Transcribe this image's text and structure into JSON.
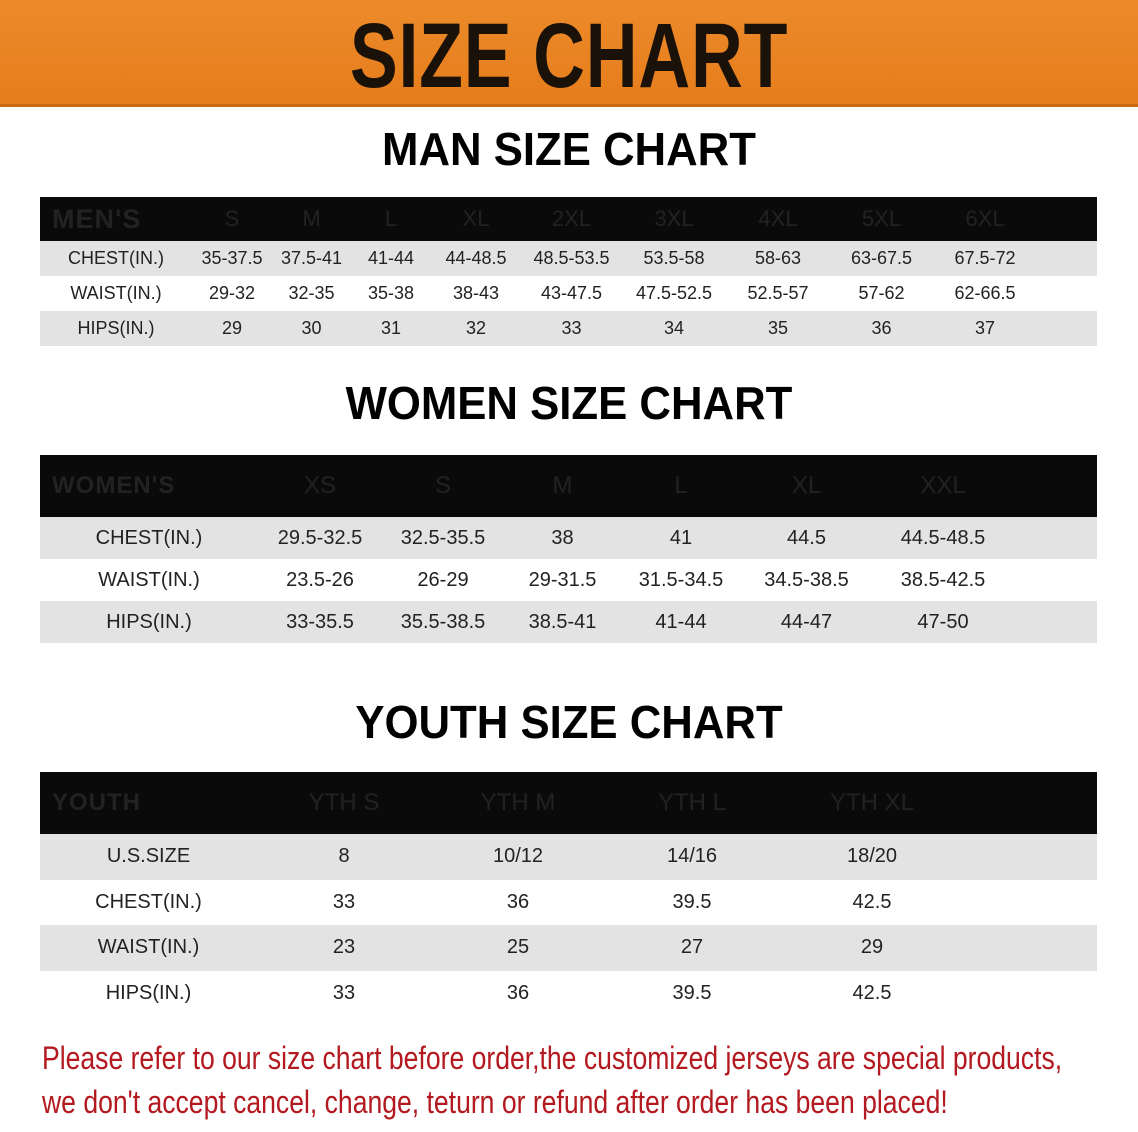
{
  "banner_title": "SIZE CHART",
  "colors": {
    "banner": "#e8821f",
    "header_row": "#0a0a0a",
    "stripe": "#e3e3e3",
    "notice": "#b3191f"
  },
  "men": {
    "title": "MAN SIZE CHART",
    "header": "MEN'S",
    "sizes": [
      "S",
      "M",
      "L",
      "XL",
      "2XL",
      "3XL",
      "4XL",
      "5XL",
      "6XL"
    ],
    "rows": [
      {
        "label": "CHEST(IN.)",
        "values": [
          "35-37.5",
          "37.5-41",
          "41-44",
          "44-48.5",
          "48.5-53.5",
          "53.5-58",
          "58-63",
          "63-67.5",
          "67.5-72"
        ]
      },
      {
        "label": "WAIST(IN.)",
        "values": [
          "29-32",
          "32-35",
          "35-38",
          "38-43",
          "43-47.5",
          "47.5-52.5",
          "52.5-57",
          "57-62",
          "62-66.5"
        ]
      },
      {
        "label": "HIPS(IN.)",
        "values": [
          "29",
          "30",
          "31",
          "32",
          "33",
          "34",
          "35",
          "36",
          "37"
        ]
      }
    ]
  },
  "women": {
    "title": "WOMEN SIZE CHART",
    "header": "WOMEN'S",
    "sizes": [
      "XS",
      "S",
      "M",
      "L",
      "XL",
      "XXL"
    ],
    "rows": [
      {
        "label": "CHEST(IN.)",
        "values": [
          "29.5-32.5",
          "32.5-35.5",
          "38",
          "41",
          "44.5",
          "44.5-48.5"
        ]
      },
      {
        "label": "WAIST(IN.)",
        "values": [
          "23.5-26",
          "26-29",
          "29-31.5",
          "31.5-34.5",
          "34.5-38.5",
          "38.5-42.5"
        ]
      },
      {
        "label": "HIPS(IN.)",
        "values": [
          "33-35.5",
          "35.5-38.5",
          "38.5-41",
          "41-44",
          "44-47",
          "47-50"
        ]
      }
    ]
  },
  "youth": {
    "title": "YOUTH SIZE CHART",
    "header": "YOUTH",
    "sizes": [
      "YTH S",
      "YTH M",
      "YTH L",
      "YTH XL"
    ],
    "rows": [
      {
        "label": "U.S.SIZE",
        "values": [
          "8",
          "10/12",
          "14/16",
          "18/20"
        ]
      },
      {
        "label": "CHEST(IN.)",
        "values": [
          "33",
          "36",
          "39.5",
          "42.5"
        ]
      },
      {
        "label": "WAIST(IN.)",
        "values": [
          "23",
          "25",
          "27",
          "29"
        ]
      },
      {
        "label": "HIPS(IN.)",
        "values": [
          "33",
          "36",
          "39.5",
          "42.5"
        ]
      }
    ]
  },
  "notice": {
    "line1": "Please refer to our size chart before order,the customized jerseys are special products,",
    "line2": "we don't accept cancel, change, teturn or refund after order has been placed!"
  }
}
